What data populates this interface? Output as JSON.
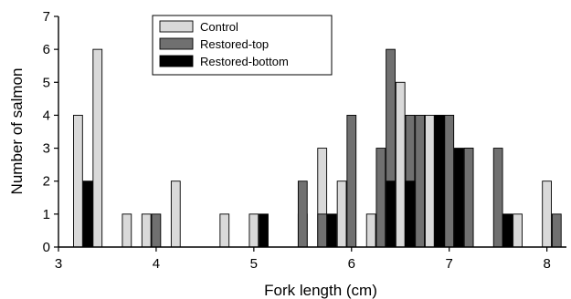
{
  "chart_data": {
    "type": "bar",
    "xlabel": "Fork length (cm)",
    "ylabel": "Number of salmon",
    "xlim": [
      3,
      8.2
    ],
    "ylim": [
      0,
      7
    ],
    "xticks": [
      3,
      4,
      5,
      6,
      7,
      8
    ],
    "yticks": [
      0,
      1,
      2,
      3,
      4,
      5,
      6,
      7
    ],
    "bin_width_cm": 0.1,
    "legend_position": "top-center",
    "series": [
      {
        "name": "Control",
        "color": "#d9d9d9",
        "x": [
          3.2,
          3.4,
          3.7,
          3.9,
          4.2,
          4.7,
          5.0,
          5.5,
          5.7,
          5.9,
          6.2,
          6.5,
          6.8,
          6.9,
          7.0,
          7.2,
          7.7,
          8.0
        ],
        "y": [
          4,
          6,
          1,
          1,
          2,
          1,
          1,
          1,
          3,
          2,
          1,
          5,
          4,
          4,
          4,
          3,
          1,
          2
        ]
      },
      {
        "name": "Restored-top",
        "color": "#707070",
        "x": [
          4.0,
          5.5,
          5.7,
          6.0,
          6.3,
          6.4,
          6.6,
          6.7,
          7.0,
          7.2,
          7.5,
          8.1
        ],
        "y": [
          1,
          2,
          1,
          4,
          3,
          6,
          4,
          4,
          4,
          3,
          3,
          1
        ]
      },
      {
        "name": "Restored-bottom",
        "color": "#000000",
        "x": [
          3.3,
          5.1,
          5.8,
          6.4,
          6.6,
          6.9,
          7.1,
          7.6
        ],
        "y": [
          2,
          1,
          1,
          2,
          2,
          4,
          3,
          1
        ]
      }
    ]
  }
}
